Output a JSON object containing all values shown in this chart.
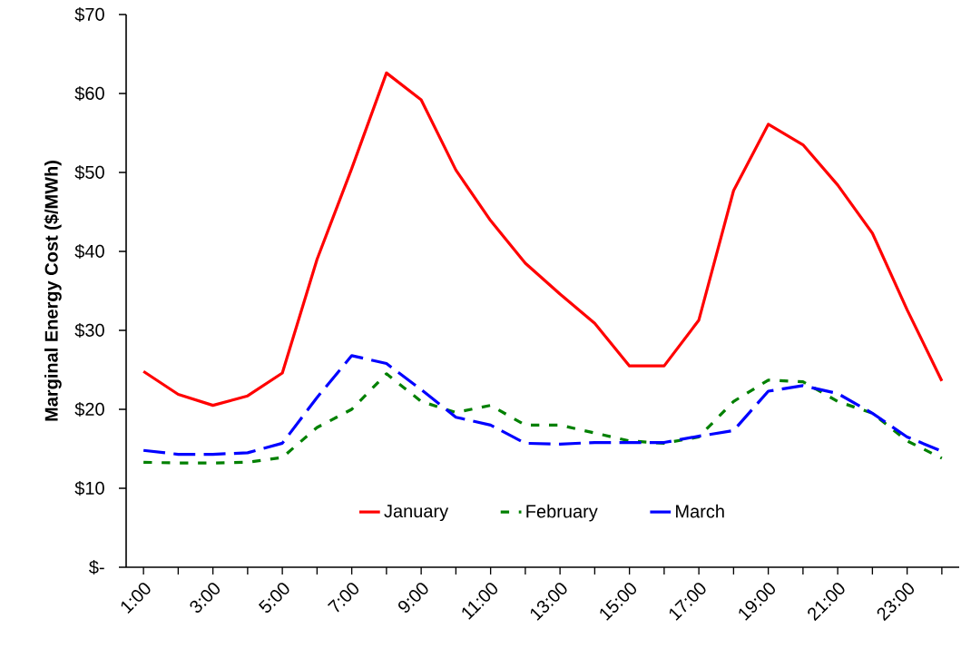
{
  "chart_data": {
    "type": "line",
    "ylabel": "Marginal Energy Cost ($/MWh)",
    "categories": [
      "1:00",
      null,
      "3:00",
      null,
      "5:00",
      null,
      "7:00",
      null,
      "9:00",
      null,
      "11:00",
      null,
      "13:00",
      null,
      "15:00",
      null,
      "17:00",
      null,
      "19:00",
      null,
      "21:00",
      null,
      "23:00",
      null
    ],
    "series": [
      {
        "name": "January",
        "color": "#ff0000",
        "line_style": "solid",
        "values": [
          24.8,
          21.9,
          20.5,
          21.7,
          24.6,
          39,
          50.5,
          62.6,
          59.2,
          50.3,
          43.9,
          38.5,
          34.6,
          30.9,
          25.5,
          25.5,
          31.3,
          47.7,
          56.1,
          53.5,
          48.4,
          42.3,
          32.6,
          23.6
        ]
      },
      {
        "name": "February",
        "color": "#008000",
        "line_style": "dotted",
        "values": [
          13.3,
          13.2,
          13.2,
          13.3,
          13.9,
          17.7,
          20,
          24.5,
          21,
          19.6,
          20.5,
          18,
          18,
          17,
          16,
          15.7,
          16.5,
          21,
          23.7,
          23.5,
          21,
          19.5,
          16,
          13.8
        ]
      },
      {
        "name": "March",
        "color": "#0000ff",
        "line_style": "dashed",
        "values": [
          14.8,
          14.3,
          14.3,
          14.5,
          15.7,
          21.5,
          26.8,
          25.8,
          22.5,
          19,
          18,
          15.7,
          15.6,
          15.8,
          15.8,
          15.8,
          16.6,
          17.3,
          22.3,
          23,
          22,
          19.5,
          16.5,
          14.7
        ]
      }
    ],
    "ylim": [
      0,
      70
    ],
    "yticks": [
      {
        "value": 0,
        "label": "$-"
      },
      {
        "value": 10,
        "label": "$10"
      },
      {
        "value": 20,
        "label": "$20"
      },
      {
        "value": 30,
        "label": "$30"
      },
      {
        "value": 40,
        "label": "$40"
      },
      {
        "value": 50,
        "label": "$50"
      },
      {
        "value": 60,
        "label": "$60"
      },
      {
        "value": 70,
        "label": "$70"
      }
    ],
    "legend": "bottom",
    "grid": false
  }
}
